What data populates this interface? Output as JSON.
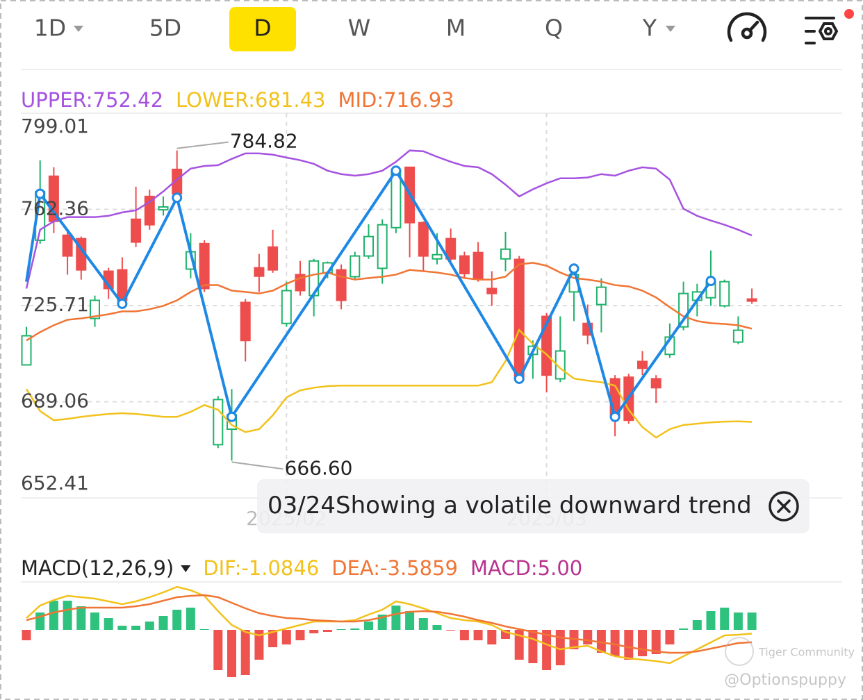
{
  "toolbar": {
    "tabs": [
      "1D",
      "5D",
      "D",
      "W",
      "M",
      "Q",
      "Y"
    ]
  },
  "chart_data": [
    {
      "type": "candlestick",
      "categories": [
        null,
        null,
        null,
        null,
        null,
        null,
        null,
        null,
        null,
        null,
        null,
        null,
        null,
        null,
        null,
        null,
        null,
        null,
        null,
        "2025/02",
        null,
        null,
        null,
        null,
        null,
        null,
        null,
        null,
        null,
        null,
        null,
        null,
        null,
        null,
        null,
        null,
        null,
        null,
        "2025/03",
        null,
        null,
        null,
        null,
        null,
        null,
        null,
        null,
        null,
        null,
        null,
        null,
        null,
        null,
        null
      ],
      "ohlc": [
        [
          703.1,
          717.6,
          703.1,
          714.2
        ],
        [
          750.6,
          781.0,
          749.3,
          769.1
        ],
        [
          775.0,
          778.4,
          753.3,
          757.8
        ],
        [
          752.5,
          754.6,
          737.5,
          744.6
        ],
        [
          751.2,
          752.0,
          735.6,
          739.3
        ],
        [
          720.8,
          729.5,
          717.6,
          727.7
        ],
        [
          738.8,
          740.1,
          728.2,
          732.2
        ],
        [
          739.3,
          744.1,
          725.6,
          727.7
        ],
        [
          758.6,
          771.0,
          748.0,
          749.9
        ],
        [
          767.3,
          769.9,
          754.6,
          756.5
        ],
        [
          762.2,
          767.3,
          760.0,
          763.3
        ],
        [
          777.6,
          784.82,
          766.5,
          768.3
        ],
        [
          739.6,
          753.3,
          736.1,
          746.2
        ],
        [
          749.3,
          750.6,
          730.9,
          732.2
        ],
        [
          672.7,
          691.2,
          671.4,
          689.9
        ],
        [
          678.6,
          693.9,
          666.6,
          684.1
        ],
        [
          726.9,
          728.2,
          704.4,
          712.4
        ],
        [
          740.1,
          745.4,
          730.9,
          736.9
        ],
        [
          748.0,
          754.6,
          738.2,
          739.3
        ],
        [
          718.9,
          734.8,
          717.6,
          731.4
        ],
        [
          737.5,
          742.7,
          729.5,
          731.4
        ],
        [
          729.5,
          743.5,
          721.6,
          742.7
        ],
        [
          738.2,
          742.5,
          736.1,
          742.0
        ],
        [
          739.3,
          741.4,
          724.3,
          727.7
        ],
        [
          736.7,
          746.2,
          735.6,
          744.6
        ],
        [
          744.6,
          756.7,
          743.5,
          752.0
        ],
        [
          739.9,
          758.6,
          734.0,
          756.5
        ],
        [
          755.4,
          778.4,
          753.3,
          777.1
        ],
        [
          778.4,
          778.4,
          744.1,
          757.3
        ],
        [
          757.3,
          757.8,
          738.8,
          744.6
        ],
        [
          743.5,
          753.3,
          741.4,
          745.1
        ],
        [
          751.2,
          755.1,
          742.7,
          743.5
        ],
        [
          744.6,
          746.2,
          736.1,
          737.9
        ],
        [
          745.9,
          749.9,
          734.8,
          736.1
        ],
        [
          732.2,
          738.8,
          725.6,
          730.3
        ],
        [
          743.5,
          753.8,
          738.8,
          747.2
        ],
        [
          743.3,
          744.6,
          696.5,
          697.8
        ],
        [
          707.1,
          712.4,
          697.8,
          710.2
        ],
        [
          721.6,
          722.9,
          692.6,
          699.2
        ],
        [
          697.8,
          721.6,
          696.5,
          708.4
        ],
        [
          730.9,
          741.4,
          719.8,
          737.5
        ],
        [
          718.9,
          726.1,
          711.0,
          714.5
        ],
        [
          726.1,
          736.1,
          715.5,
          732.7
        ],
        [
          697.8,
          699.2,
          675.9,
          683.3
        ],
        [
          698.4,
          699.7,
          680.7,
          682.0
        ],
        [
          704.4,
          708.4,
          699.2,
          701.8
        ],
        [
          697.8,
          699.2,
          688.6,
          694.4
        ],
        [
          707.1,
          718.9,
          705.8,
          713.7
        ],
        [
          717.6,
          734.8,
          716.3,
          730.3
        ],
        [
          727.7,
          734.0,
          721.6,
          730.9
        ],
        [
          728.7,
          746.7,
          725.6,
          734.8
        ],
        [
          725.6,
          735.6,
          725.0,
          734.8
        ],
        [
          711.8,
          721.6,
          711.0,
          716.3
        ],
        [
          728.2,
          732.2,
          726.4,
          727.4
        ]
      ],
      "up_color": "#1fb26b",
      "down_color": "#ee4d4d",
      "series": [
        {
          "name": "UPPER:752.42",
          "color": "#a552e0",
          "values": [
            732.2,
            754.6,
            757.8,
            759.4,
            759.4,
            759.4,
            759.9,
            761.2,
            762.0,
            765.2,
            769.2,
            773.7,
            777.9,
            778.9,
            779.2,
            781.6,
            783.7,
            783.7,
            783.2,
            782.1,
            781.1,
            779.7,
            777.1,
            775.8,
            775.2,
            775.8,
            777.1,
            780.5,
            784.8,
            784.5,
            782.4,
            780.5,
            778.9,
            778.4,
            775.8,
            771.8,
            767.3,
            770.0,
            772.3,
            774.2,
            774.2,
            774.5,
            775.8,
            775.2,
            777.1,
            778.4,
            777.9,
            773.7,
            762.6,
            759.9,
            758.1,
            756.5,
            754.6,
            752.4
          ]
        },
        {
          "name": "LOWER:681.43",
          "color": "#f2c21b",
          "values": [
            693.9,
            685.5,
            682.0,
            682.5,
            683.3,
            683.9,
            684.4,
            684.7,
            684.4,
            683.9,
            683.3,
            683.3,
            685.2,
            687.8,
            686.0,
            680.2,
            677.5,
            678.6,
            683.9,
            690.7,
            693.4,
            694.4,
            695.0,
            695.2,
            695.2,
            695.2,
            695.2,
            695.2,
            695.2,
            695.2,
            695.2,
            695.2,
            695.2,
            695.2,
            696.5,
            704.5,
            716.4,
            711.1,
            707.1,
            701.8,
            697.9,
            697.1,
            696.5,
            695.2,
            686.0,
            679.4,
            675.4,
            678.6,
            680.2,
            680.7,
            681.2,
            681.5,
            681.6,
            681.4
          ]
        },
        {
          "name": "MID:716.93",
          "color": "#f07535",
          "values": [
            712.4,
            715.6,
            718.2,
            720.3,
            720.8,
            721.6,
            722.4,
            723.5,
            723.5,
            724.3,
            725.6,
            727.7,
            730.9,
            733.5,
            733.5,
            731.4,
            730.9,
            730.3,
            731.4,
            734.0,
            736.2,
            737.5,
            738.3,
            736.7,
            735.6,
            736.2,
            736.7,
            737.5,
            739.3,
            738.8,
            738.3,
            737.5,
            736.2,
            735.6,
            735.6,
            736.7,
            741.4,
            742.0,
            740.9,
            738.3,
            736.2,
            735.6,
            734.8,
            733.5,
            733.0,
            731.4,
            728.8,
            725.1,
            721.6,
            719.8,
            719.0,
            718.7,
            718.2,
            716.9
          ]
        }
      ],
      "zigzag": {
        "color": "#1e88e5",
        "x": [
          0,
          1,
          7,
          11,
          15,
          27,
          36,
          40,
          43,
          50
        ],
        "values": [
          734.8,
          768.3,
          726.4,
          766.8,
          683.3,
          777.1,
          697.8,
          739.8,
          683.3,
          735.1
        ]
      },
      "high_label": "784.82",
      "low_label": "666.60",
      "ylim": [
        652.41,
        799.01
      ],
      "yticks": [
        652.41,
        689.06,
        725.71,
        762.36,
        799.01
      ],
      "grid": true,
      "tooltip": {
        "date": "03/24",
        "text": "Showing a volatile downward trend"
      }
    },
    {
      "type": "bar",
      "title": "MACD(12,26,9)",
      "name": "MACD:5.00",
      "up_color": "#2ec27e",
      "down_color": "#ef5350",
      "values": [
        -3.0,
        5.0,
        8.4,
        8.4,
        6.8,
        5.0,
        3.4,
        1.2,
        1.2,
        2.4,
        4.0,
        5.8,
        6.4,
        0.2,
        -11.6,
        -13.6,
        -13.0,
        -8.6,
        -5.0,
        -4.2,
        -3.0,
        -1.0,
        -0.6,
        0.2,
        0.4,
        2.4,
        4.4,
        7.0,
        5.4,
        3.4,
        1.4,
        -0.2,
        -3.0,
        -3.0,
        -4.2,
        -2.6,
        -8.6,
        -9.6,
        -11.6,
        -10.2,
        -5.6,
        -4.2,
        -6.6,
        -7.6,
        -8.6,
        -7.6,
        -7.0,
        -4.2,
        0.4,
        2.8,
        5.4,
        6.4,
        5.0,
        5.0
      ],
      "series": [
        {
          "name": "DIF:-1.0846",
          "color": "#f2c21b",
          "values": [
            3.4,
            7.0,
            8.6,
            9.8,
            9.4,
            9.0,
            8.2,
            7.4,
            8.2,
            9.4,
            10.8,
            12.4,
            11.4,
            9.8,
            5.4,
            1.4,
            -0.6,
            -1.6,
            -0.6,
            0.4,
            1.4,
            2.4,
            2.4,
            2.4,
            2.8,
            4.4,
            5.8,
            8.2,
            7.4,
            6.2,
            4.8,
            3.4,
            2.8,
            2.4,
            1.4,
            -0.6,
            -1.6,
            -2.6,
            -4.2,
            -5.6,
            -5.0,
            -4.6,
            -6.2,
            -7.6,
            -8.2,
            -8.6,
            -9.0,
            -9.6,
            -7.6,
            -5.6,
            -3.6,
            -1.6,
            -1.4,
            -1.0846
          ]
        },
        {
          "name": "DEA:-3.5859",
          "color": "#f07535",
          "values": [
            2.8,
            3.8,
            5.0,
            5.8,
            6.4,
            6.4,
            6.4,
            6.4,
            6.8,
            7.4,
            8.4,
            9.4,
            9.8,
            10.0,
            9.4,
            7.8,
            6.2,
            4.8,
            4.0,
            3.4,
            3.2,
            2.8,
            2.6,
            2.4,
            2.4,
            2.8,
            3.6,
            4.6,
            5.2,
            5.4,
            5.2,
            4.6,
            3.8,
            2.8,
            2.0,
            1.0,
            0.2,
            -0.6,
            -1.4,
            -2.2,
            -2.6,
            -3.0,
            -3.6,
            -4.2,
            -5.0,
            -5.6,
            -6.2,
            -6.6,
            -6.6,
            -6.2,
            -5.4,
            -4.6,
            -3.8,
            -3.5859
          ]
        }
      ],
      "name_color": "#b8338f",
      "ylim": [
        -17.6,
        13.8
      ]
    }
  ],
  "watermark": {
    "brand": "Tiger Community",
    "handle": "@Optionspuppy"
  }
}
